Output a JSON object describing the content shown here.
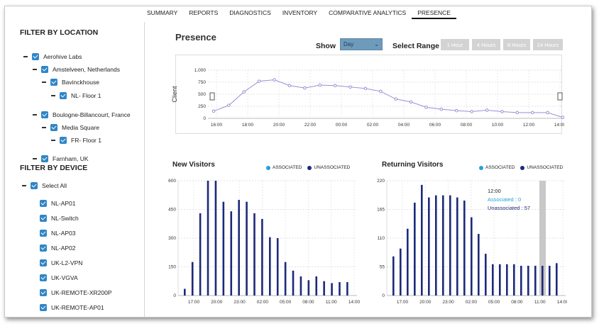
{
  "tabs": [
    {
      "label": "SUMMARY",
      "active": false
    },
    {
      "label": "REPORTS",
      "active": false
    },
    {
      "label": "DIAGNOSTICS",
      "active": false
    },
    {
      "label": "INVENTORY",
      "active": false
    },
    {
      "label": "COMPARATIVE ANALYTICS",
      "active": false
    },
    {
      "label": "PRESENCE",
      "active": true
    }
  ],
  "sidebar": {
    "location_title": "FILTER BY LOCATION",
    "locations": [
      {
        "label": "Aerohive Labs",
        "level": 0
      },
      {
        "label": "Amstelveen, Netherlands",
        "level": 1
      },
      {
        "label": "Bavinckhouse",
        "level": 2
      },
      {
        "label": "NL- Floor 1",
        "level": 3
      },
      {
        "label": "Boulogne-Billancourt, France",
        "level": 1
      },
      {
        "label": "Media Square",
        "level": 2
      },
      {
        "label": "FR- Floor 1",
        "level": 3
      },
      {
        "label": "Farnham, UK",
        "level": 1
      }
    ],
    "device_title": "FILTER BY DEVICE",
    "select_all": "Select All",
    "devices": [
      "NL-AP01",
      "NL-Switch",
      "NL-AP03",
      "NL-AP02",
      "UK-L2-VPN",
      "UK-VGVA",
      "UK-REMOTE-XR200P",
      "UK-REMOTE-AP01"
    ]
  },
  "presence": {
    "title": "Presence",
    "show_label": "Show",
    "show_value": "Day",
    "range_label": "Select Range",
    "range_buttons": [
      "1 Hour",
      "4 Hours",
      "8 Hours",
      "24 Hours"
    ]
  },
  "new_visitors": {
    "title": "New Visitors",
    "legend": [
      "ASSOCIATED",
      "UNASSOCIATED"
    ]
  },
  "returning_visitors": {
    "title": "Returning Visitors",
    "legend": [
      "ASSOCIATED",
      "UNASSOCIATED"
    ],
    "tooltip": {
      "time": "12:00",
      "associated": "Associated : 0",
      "unassociated": "Unassociated : 57"
    }
  },
  "colors": {
    "checkbox": "#2f86c6",
    "associated": "#2a9fd6",
    "unassociated": "#1d2a7a",
    "line": "#9b8fd6",
    "highlight": "#c8c8c8"
  },
  "chart_data": [
    {
      "type": "line",
      "ylabel": "Client",
      "yticks": [
        "0",
        "250",
        "500",
        "750",
        "1,000"
      ],
      "ylim": [
        0,
        1000
      ],
      "xticks": [
        "16:00",
        "18:00",
        "20:00",
        "22:00",
        "00:00",
        "02:00",
        "04:00",
        "06:00",
        "08:00",
        "10:00",
        "12:00",
        "14:00"
      ],
      "x": [
        0,
        1,
        2,
        3,
        4,
        5,
        6,
        7,
        8,
        9,
        10,
        11,
        12,
        13,
        14,
        15,
        16,
        17,
        18,
        19,
        20,
        21,
        22,
        23
      ],
      "values": [
        150,
        270,
        550,
        770,
        800,
        680,
        630,
        690,
        680,
        650,
        620,
        560,
        400,
        340,
        230,
        190,
        160,
        140,
        170,
        140,
        120,
        120,
        120,
        20
      ],
      "grid": true
    },
    {
      "type": "bar",
      "title": "New Visitors",
      "yticks": [
        "0",
        "150",
        "300",
        "450",
        "600"
      ],
      "ylim": [
        0,
        600
      ],
      "xticks": [
        "17:00",
        "20:00",
        "23:00",
        "02:00",
        "05:00",
        "08:00",
        "11:00",
        "14:00"
      ],
      "series": [
        {
          "name": "UNASSOCIATED",
          "values": [
            35,
            175,
            430,
            600,
            600,
            490,
            440,
            500,
            490,
            430,
            400,
            305,
            300,
            175,
            130,
            100,
            80,
            100,
            75,
            65,
            70,
            70
          ]
        }
      ],
      "grid": true
    },
    {
      "type": "bar",
      "title": "Returning Visitors",
      "yticks": [
        "0",
        "55",
        "110",
        "165",
        "220"
      ],
      "ylim": [
        0,
        220
      ],
      "xticks": [
        "17:00",
        "20:00",
        "23:00",
        "02:00",
        "05:00",
        "08:00",
        "11:00",
        "14:00"
      ],
      "series": [
        {
          "name": "UNASSOCIATED",
          "values": [
            75,
            90,
            128,
            178,
            212,
            188,
            192,
            192,
            192,
            188,
            182,
            150,
            118,
            80,
            60,
            60,
            60,
            60,
            57,
            57,
            57,
            57,
            57,
            62
          ]
        }
      ],
      "highlight_index": 21,
      "grid": true
    }
  ]
}
